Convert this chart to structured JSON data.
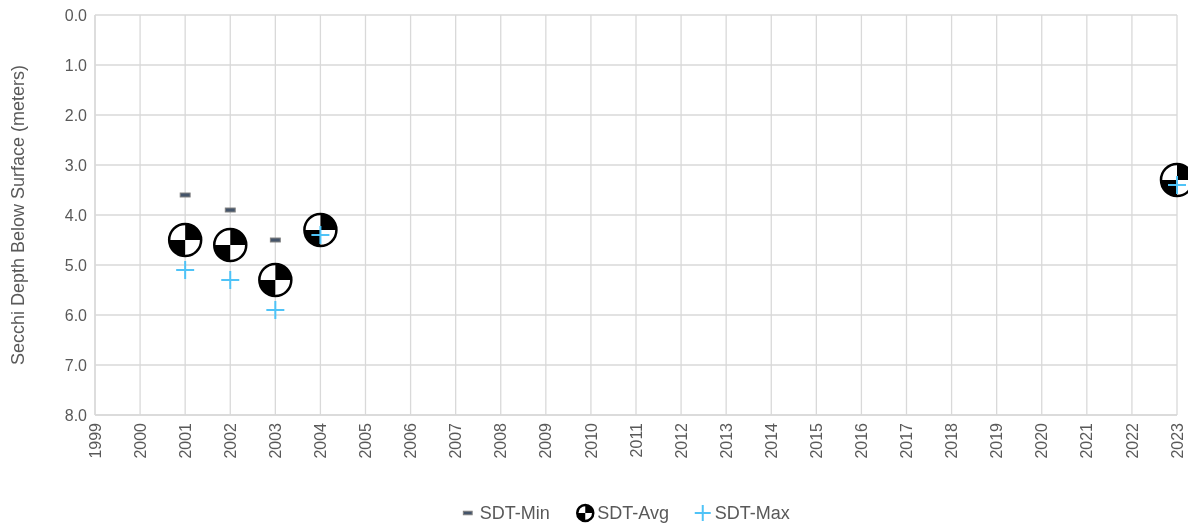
{
  "chart_data": {
    "type": "scatter",
    "ylabel": "Secchi Depth Below Surface (meters)",
    "x": [
      2001,
      2002,
      2003,
      2004,
      2023
    ],
    "xlim": [
      1999,
      2023
    ],
    "xticks": [
      1999,
      2000,
      2001,
      2002,
      2003,
      2004,
      2005,
      2006,
      2007,
      2008,
      2009,
      2010,
      2011,
      2012,
      2013,
      2014,
      2015,
      2016,
      2017,
      2018,
      2019,
      2020,
      2021,
      2022,
      2023
    ],
    "ylim": [
      8,
      0
    ],
    "yticks": [
      {
        "value": 0,
        "label": "0.0"
      },
      {
        "value": 1,
        "label": "1.0"
      },
      {
        "value": 2,
        "label": "2.0"
      },
      {
        "value": 3,
        "label": "3.0"
      },
      {
        "value": 4,
        "label": "4.0"
      },
      {
        "value": 5,
        "label": "5.0"
      },
      {
        "value": 6,
        "label": "6.0"
      },
      {
        "value": 7,
        "label": "7.0"
      },
      {
        "value": 8,
        "label": "8.0"
      }
    ],
    "grid": true,
    "legend": "bottom",
    "series": [
      {
        "name": "SDT-Min",
        "color": "#44546a",
        "marker": "square",
        "values": [
          3.6,
          3.9,
          4.5,
          null,
          null
        ]
      },
      {
        "name": "SDT-Avg",
        "color": "#000000",
        "marker": "circle",
        "values": [
          4.5,
          4.6,
          5.3,
          4.3,
          3.3
        ]
      },
      {
        "name": "SDT-Max",
        "color": "#4fc3f7",
        "marker": "cross",
        "values": [
          5.1,
          5.3,
          5.9,
          4.4,
          3.4
        ]
      }
    ]
  }
}
